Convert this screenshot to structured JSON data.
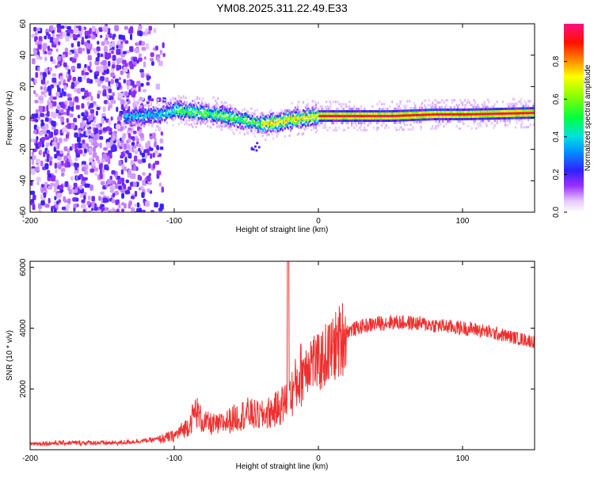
{
  "chart_data": [
    {
      "type": "heatmap",
      "title": "YM08.2025.311.22.49.E33",
      "xlabel": "Height of straight line (km)",
      "ylabel": "Frequency (Hz)",
      "xlim": [
        -200,
        150
      ],
      "ylim": [
        -60,
        60
      ],
      "xticks": [
        -200,
        -100,
        0,
        100
      ],
      "yticks": [
        60,
        40,
        20,
        0,
        -20,
        -40,
        -60
      ],
      "colorbar": {
        "label": "Normalized spectral amplitude",
        "range": [
          0,
          1
        ],
        "ticks": [
          0.0,
          0.2,
          0.4,
          0.6,
          0.8
        ]
      },
      "ridge_frequency_track": {
        "x": [
          -130,
          -110,
          -100,
          -90,
          -80,
          -70,
          -60,
          -50,
          -40,
          -30,
          -20,
          -10,
          0,
          20,
          50,
          80,
          100,
          150
        ],
        "y": [
          2,
          3,
          6,
          5,
          4,
          3,
          1,
          -1,
          -3,
          -2,
          0,
          1,
          2,
          2,
          2,
          3,
          3,
          4
        ]
      }
    },
    {
      "type": "line",
      "xlabel": "Height of straight line (km)",
      "ylabel": "SNR (10 * v/v)",
      "xlim": [
        -200,
        150
      ],
      "ylim": [
        0,
        6200
      ],
      "xticks": [
        -200,
        -100,
        0,
        100
      ],
      "yticks": [
        2000,
        4000,
        6000
      ],
      "series": [
        {
          "name": "SNR",
          "color": "#ee3030",
          "x": [
            -200,
            -180,
            -160,
            -140,
            -120,
            -110,
            -100,
            -90,
            -85,
            -80,
            -70,
            -60,
            -50,
            -40,
            -30,
            -22,
            -21,
            -20,
            -15,
            -10,
            -5,
            0,
            5,
            10,
            15,
            20,
            30,
            40,
            50,
            60,
            70,
            80,
            90,
            100,
            110,
            120,
            130,
            140,
            150
          ],
          "y": [
            200,
            220,
            230,
            220,
            300,
            350,
            450,
            800,
            1300,
            900,
            800,
            1000,
            1200,
            1100,
            1300,
            1600,
            6200,
            1700,
            2200,
            2700,
            3000,
            2800,
            3100,
            3300,
            3600,
            3900,
            4050,
            4150,
            4200,
            4180,
            4150,
            4100,
            4050,
            4000,
            3950,
            3850,
            3750,
            3650,
            3550
          ]
        }
      ]
    }
  ]
}
